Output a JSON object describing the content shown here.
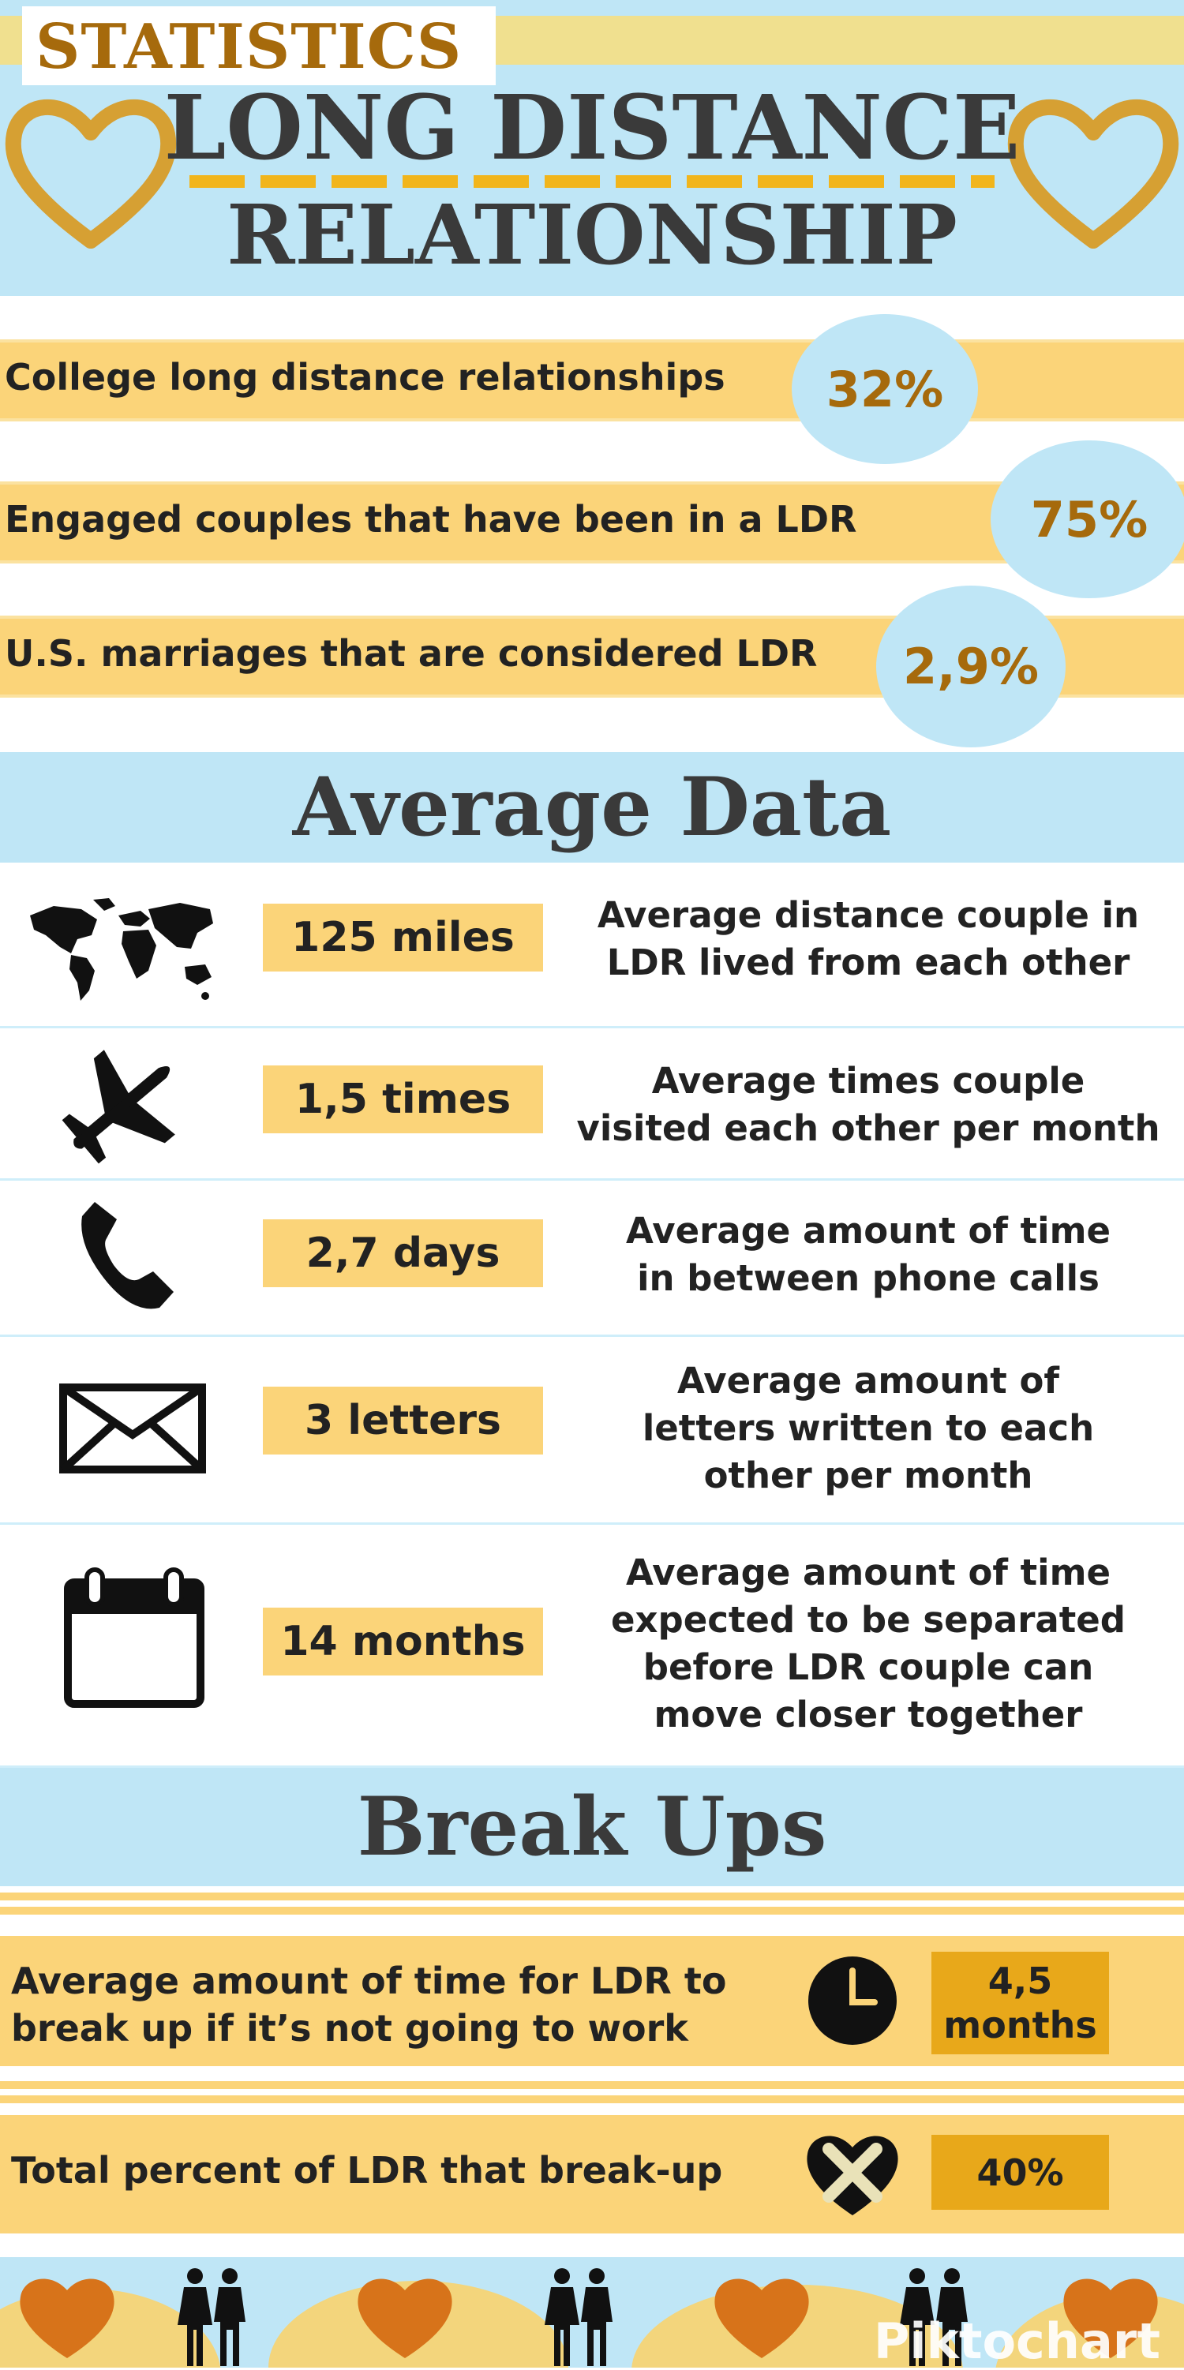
{
  "header": {
    "tag": "STATISTICS",
    "title_line1": "LONG DISTANCE",
    "title_line2": "RELATIONSHIP"
  },
  "stats": [
    {
      "label": "College long distance relationships",
      "value": "32%"
    },
    {
      "label": "Engaged couples that have been in a LDR",
      "value": "75%"
    },
    {
      "label": "U.S. marriages that are considered LDR",
      "value": "2,9%"
    }
  ],
  "average_section": {
    "title": "Average Data",
    "rows": [
      {
        "icon": "world-map-icon",
        "value": "125 miles",
        "desc_lines": [
          "Average distance couple in",
          "LDR lived from each other"
        ]
      },
      {
        "icon": "airplane-icon",
        "value": "1,5 times",
        "desc_lines": [
          "Average times couple",
          "visited each other per month"
        ]
      },
      {
        "icon": "phone-icon",
        "value": "2,7 days",
        "desc_lines": [
          "Average amount of time",
          "in between phone calls"
        ]
      },
      {
        "icon": "envelope-icon",
        "value": "3 letters",
        "desc_lines": [
          "Average amount of",
          "letters written to each",
          "other per month"
        ]
      },
      {
        "icon": "calendar-icon",
        "value": "14 months",
        "desc_lines": [
          "Average amount of time",
          "expected to be separated",
          "before LDR couple can",
          "move closer together"
        ]
      }
    ]
  },
  "breakups": {
    "title": "Break Ups",
    "rows": [
      {
        "text_lines": [
          "Average amount of time for LDR to",
          "break up if it’s not going to work"
        ],
        "icon": "clock-icon",
        "value_lines": [
          "4,5",
          "months"
        ]
      },
      {
        "text_lines": [
          "Total percent of LDR that break-up"
        ],
        "icon": "broken-heart-icon",
        "value_lines": [
          "40%"
        ]
      }
    ]
  },
  "footer": {
    "brand": "Piktochart"
  },
  "colors": {
    "sky": "#bfe6f6",
    "yellow": "#fbd479",
    "gold": "#e8a81a",
    "brown": "#a66a0c",
    "heart_orange": "#d7731a",
    "dark": "#3a3a3a"
  }
}
